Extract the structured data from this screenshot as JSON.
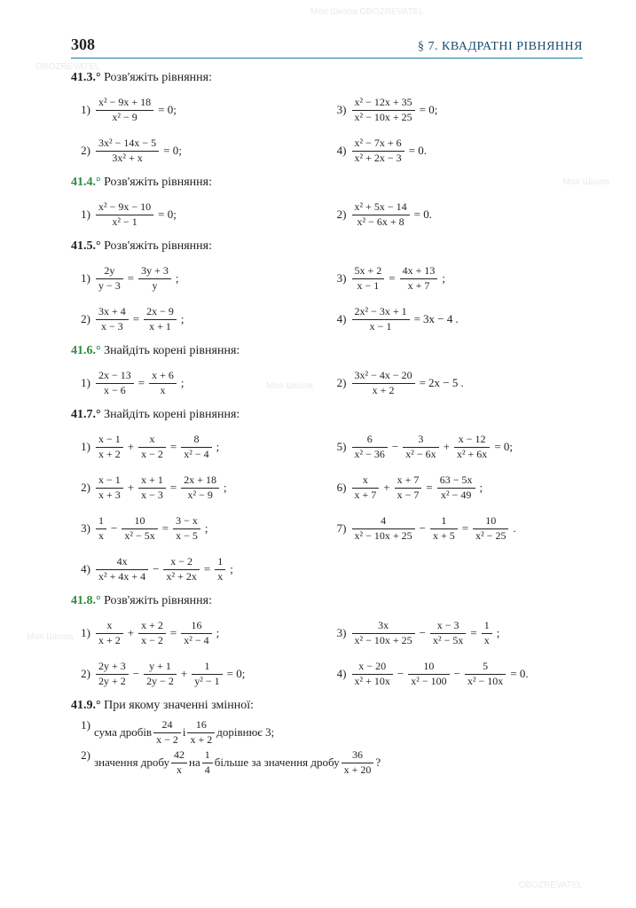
{
  "page_number": "308",
  "section": "§ 7. КВАДРАТНІ РІВНЯННЯ",
  "colors": {
    "green": "#2e8b3f",
    "black": "#222222",
    "rule": "#1a7aa8",
    "section_text": "#1a4a6e"
  },
  "typography": {
    "body_fontsize": 13,
    "frac_fontsize": 12,
    "head_fontsize": 14,
    "pagenum_fontsize": 18
  },
  "tasks": [
    {
      "id": "41.3.°",
      "color": "black",
      "text": "Розв'яжіть рівняння:",
      "items": [
        {
          "num": "1)",
          "col": "L",
          "frac_n": "x² − 9x + 18",
          "frac_d": "x² − 9",
          "after": "= 0;"
        },
        {
          "num": "3)",
          "col": "R",
          "frac_n": "x² − 12x + 35",
          "frac_d": "x² − 10x + 25",
          "after": "= 0;"
        },
        {
          "num": "2)",
          "col": "L",
          "frac_n": "3x² − 14x − 5",
          "frac_d": "3x² + x",
          "after": "= 0;"
        },
        {
          "num": "4)",
          "col": "R",
          "frac_n": "x² − 7x + 6",
          "frac_d": "x² + 2x − 3",
          "after": "= 0."
        }
      ]
    },
    {
      "id": "41.4.°",
      "color": "green",
      "text": "Розв'яжіть рівняння:",
      "items": [
        {
          "num": "1)",
          "col": "L",
          "frac_n": "x² − 9x − 10",
          "frac_d": "x² − 1",
          "after": "= 0;"
        },
        {
          "num": "2)",
          "col": "R",
          "frac_n": "x² + 5x − 14",
          "frac_d": "x² − 6x + 8",
          "after": "= 0."
        }
      ]
    },
    {
      "id": "41.5.°",
      "color": "black",
      "text": "Розв'яжіть рівняння:",
      "items": [
        {
          "num": "1)",
          "col": "L",
          "lhs_n": "2y",
          "lhs_d": "y − 3",
          "rhs_n": "3y + 3",
          "rhs_d": "y",
          "sep": "=",
          "after": ";"
        },
        {
          "num": "3)",
          "col": "R",
          "lhs_n": "5x + 2",
          "lhs_d": "x − 1",
          "rhs_n": "4x + 13",
          "rhs_d": "x + 7",
          "sep": "=",
          "after": ";"
        },
        {
          "num": "2)",
          "col": "L",
          "lhs_n": "3x + 4",
          "lhs_d": "x − 3",
          "rhs_n": "2x − 9",
          "rhs_d": "x + 1",
          "sep": "=",
          "after": ";"
        },
        {
          "num": "4)",
          "col": "R",
          "lhs_n": "2x² − 3x + 1",
          "lhs_d": "x − 1",
          "rhs_text": "3x − 4",
          "sep": "=",
          "after": "."
        }
      ]
    },
    {
      "id": "41.6.°",
      "color": "green",
      "text": "Знайдіть корені рівняння:",
      "items": [
        {
          "num": "1)",
          "col": "L",
          "lhs_n": "2x − 13",
          "lhs_d": "x − 6",
          "rhs_n": "x + 6",
          "rhs_d": "x",
          "sep": "=",
          "after": ";"
        },
        {
          "num": "2)",
          "col": "R",
          "lhs_n": "3x² − 4x − 20",
          "lhs_d": "x + 2",
          "rhs_text": "2x − 5",
          "sep": "=",
          "after": "."
        }
      ]
    },
    {
      "id": "41.7.°",
      "color": "black",
      "text": "Знайдіть корені рівняння:",
      "items": [
        {
          "num": "1)",
          "col": "L",
          "expr": [
            {
              "n": "x − 1",
              "d": "x + 2"
            },
            "+",
            {
              "n": "x",
              "d": "x − 2"
            },
            "=",
            {
              "n": "8",
              "d": "x² − 4"
            },
            ";"
          ]
        },
        {
          "num": "5)",
          "col": "R",
          "expr": [
            {
              "n": "6",
              "d": "x² − 36"
            },
            "−",
            {
              "n": "3",
              "d": "x² − 6x"
            },
            "+",
            {
              "n": "x − 12",
              "d": "x² + 6x"
            },
            "= 0;"
          ]
        },
        {
          "num": "2)",
          "col": "L",
          "expr": [
            {
              "n": "x − 1",
              "d": "x + 3"
            },
            "+",
            {
              "n": "x + 1",
              "d": "x − 3"
            },
            "=",
            {
              "n": "2x + 18",
              "d": "x² − 9"
            },
            ";"
          ]
        },
        {
          "num": "6)",
          "col": "R",
          "expr": [
            {
              "n": "x",
              "d": "x + 7"
            },
            "+",
            {
              "n": "x + 7",
              "d": "x − 7"
            },
            "=",
            {
              "n": "63 − 5x",
              "d": "x² − 49"
            },
            ";"
          ]
        },
        {
          "num": "3)",
          "col": "L",
          "expr": [
            {
              "n": "1",
              "d": "x"
            },
            "−",
            {
              "n": "10",
              "d": "x² − 5x"
            },
            "=",
            {
              "n": "3 − x",
              "d": "x − 5"
            },
            ";"
          ]
        },
        {
          "num": "7)",
          "col": "R",
          "expr": [
            {
              "n": "4",
              "d": "x² − 10x + 25"
            },
            "−",
            {
              "n": "1",
              "d": "x + 5"
            },
            "=",
            {
              "n": "10",
              "d": "x² − 25"
            },
            "."
          ]
        },
        {
          "num": "4)",
          "col": "L",
          "expr": [
            {
              "n": "4x",
              "d": "x² + 4x + 4"
            },
            "−",
            {
              "n": "x − 2",
              "d": "x² + 2x"
            },
            "=",
            {
              "n": "1",
              "d": "x"
            },
            ";"
          ]
        }
      ]
    },
    {
      "id": "41.8.°",
      "color": "green",
      "text": "Розв'яжіть рівняння:",
      "items": [
        {
          "num": "1)",
          "col": "L",
          "expr": [
            {
              "n": "x",
              "d": "x + 2"
            },
            "+",
            {
              "n": "x + 2",
              "d": "x − 2"
            },
            "=",
            {
              "n": "16",
              "d": "x² − 4"
            },
            ";"
          ]
        },
        {
          "num": "3)",
          "col": "R",
          "expr": [
            {
              "n": "3x",
              "d": "x² − 10x + 25"
            },
            "−",
            {
              "n": "x − 3",
              "d": "x² − 5x"
            },
            "=",
            {
              "n": "1",
              "d": "x"
            },
            ";"
          ]
        },
        {
          "num": "2)",
          "col": "L",
          "expr": [
            {
              "n": "2y + 3",
              "d": "2y + 2"
            },
            "−",
            {
              "n": "y + 1",
              "d": "2y − 2"
            },
            "+",
            {
              "n": "1",
              "d": "y² − 1"
            },
            "= 0;"
          ]
        },
        {
          "num": "4)",
          "col": "R",
          "expr": [
            {
              "n": "x − 20",
              "d": "x² + 10x"
            },
            "−",
            {
              "n": "10",
              "d": "x² − 100"
            },
            "−",
            {
              "n": "5",
              "d": "x² − 10x"
            },
            "= 0."
          ]
        }
      ]
    },
    {
      "id": "41.9.°",
      "color": "black",
      "text": "При якому значенні змінної:",
      "lines": [
        {
          "num": "1)",
          "parts": [
            "сума дробів ",
            {
              "n": "24",
              "d": "x − 2"
            },
            " і ",
            {
              "n": "16",
              "d": "x + 2"
            },
            " дорівнює 3;"
          ]
        },
        {
          "num": "2)",
          "parts": [
            "значення дробу ",
            {
              "n": "42",
              "d": "x"
            },
            " на ",
            {
              "n": "1",
              "d": "4"
            },
            " більше за значення дробу ",
            {
              "n": "36",
              "d": "x + 20"
            },
            " ?"
          ]
        }
      ]
    }
  ],
  "watermarks": [
    "Моя Школа",
    "OBOZREVATEL"
  ]
}
